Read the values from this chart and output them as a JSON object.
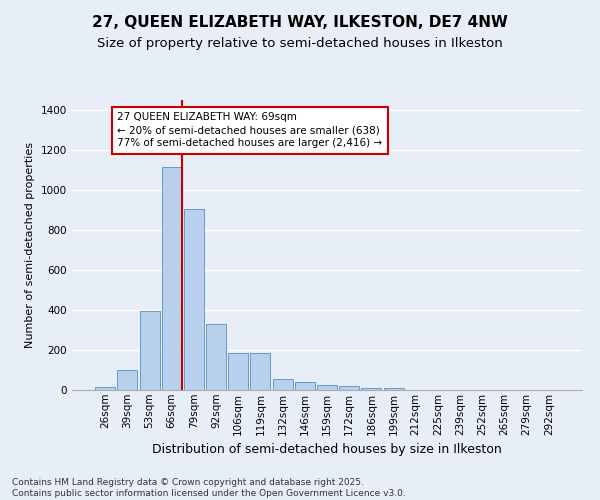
{
  "title1": "27, QUEEN ELIZABETH WAY, ILKESTON, DE7 4NW",
  "title2": "Size of property relative to semi-detached houses in Ilkeston",
  "xlabel": "Distribution of semi-detached houses by size in Ilkeston",
  "ylabel": "Number of semi-detached properties",
  "bar_categories": [
    "26sqm",
    "39sqm",
    "53sqm",
    "66sqm",
    "79sqm",
    "92sqm",
    "106sqm",
    "119sqm",
    "132sqm",
    "146sqm",
    "159sqm",
    "172sqm",
    "186sqm",
    "199sqm",
    "212sqm",
    "225sqm",
    "239sqm",
    "252sqm",
    "265sqm",
    "279sqm",
    "292sqm"
  ],
  "bar_values": [
    15,
    100,
    395,
    1115,
    905,
    330,
    185,
    185,
    55,
    40,
    25,
    20,
    10,
    10,
    0,
    0,
    0,
    0,
    0,
    0,
    0
  ],
  "bar_color": "#b8d0eb",
  "bar_edge_color": "#6699cc",
  "ylim": [
    0,
    1450
  ],
  "vline_index": 3.45,
  "vline_color": "#cc0000",
  "annotation_title": "27 QUEEN ELIZABETH WAY: 69sqm",
  "annotation_line1": "← 20% of semi-detached houses are smaller (638)",
  "annotation_line2": "77% of semi-detached houses are larger (2,416) →",
  "annotation_box_color": "#cc0000",
  "background_color": "#e8eef8",
  "grid_color": "#ffffff",
  "footer_line1": "Contains HM Land Registry data © Crown copyright and database right 2025.",
  "footer_line2": "Contains public sector information licensed under the Open Government Licence v3.0.",
  "title1_fontsize": 11,
  "title2_fontsize": 9.5,
  "xlabel_fontsize": 9,
  "ylabel_fontsize": 8,
  "tick_fontsize": 7.5,
  "annotation_fontsize": 7.5,
  "footer_fontsize": 6.5
}
